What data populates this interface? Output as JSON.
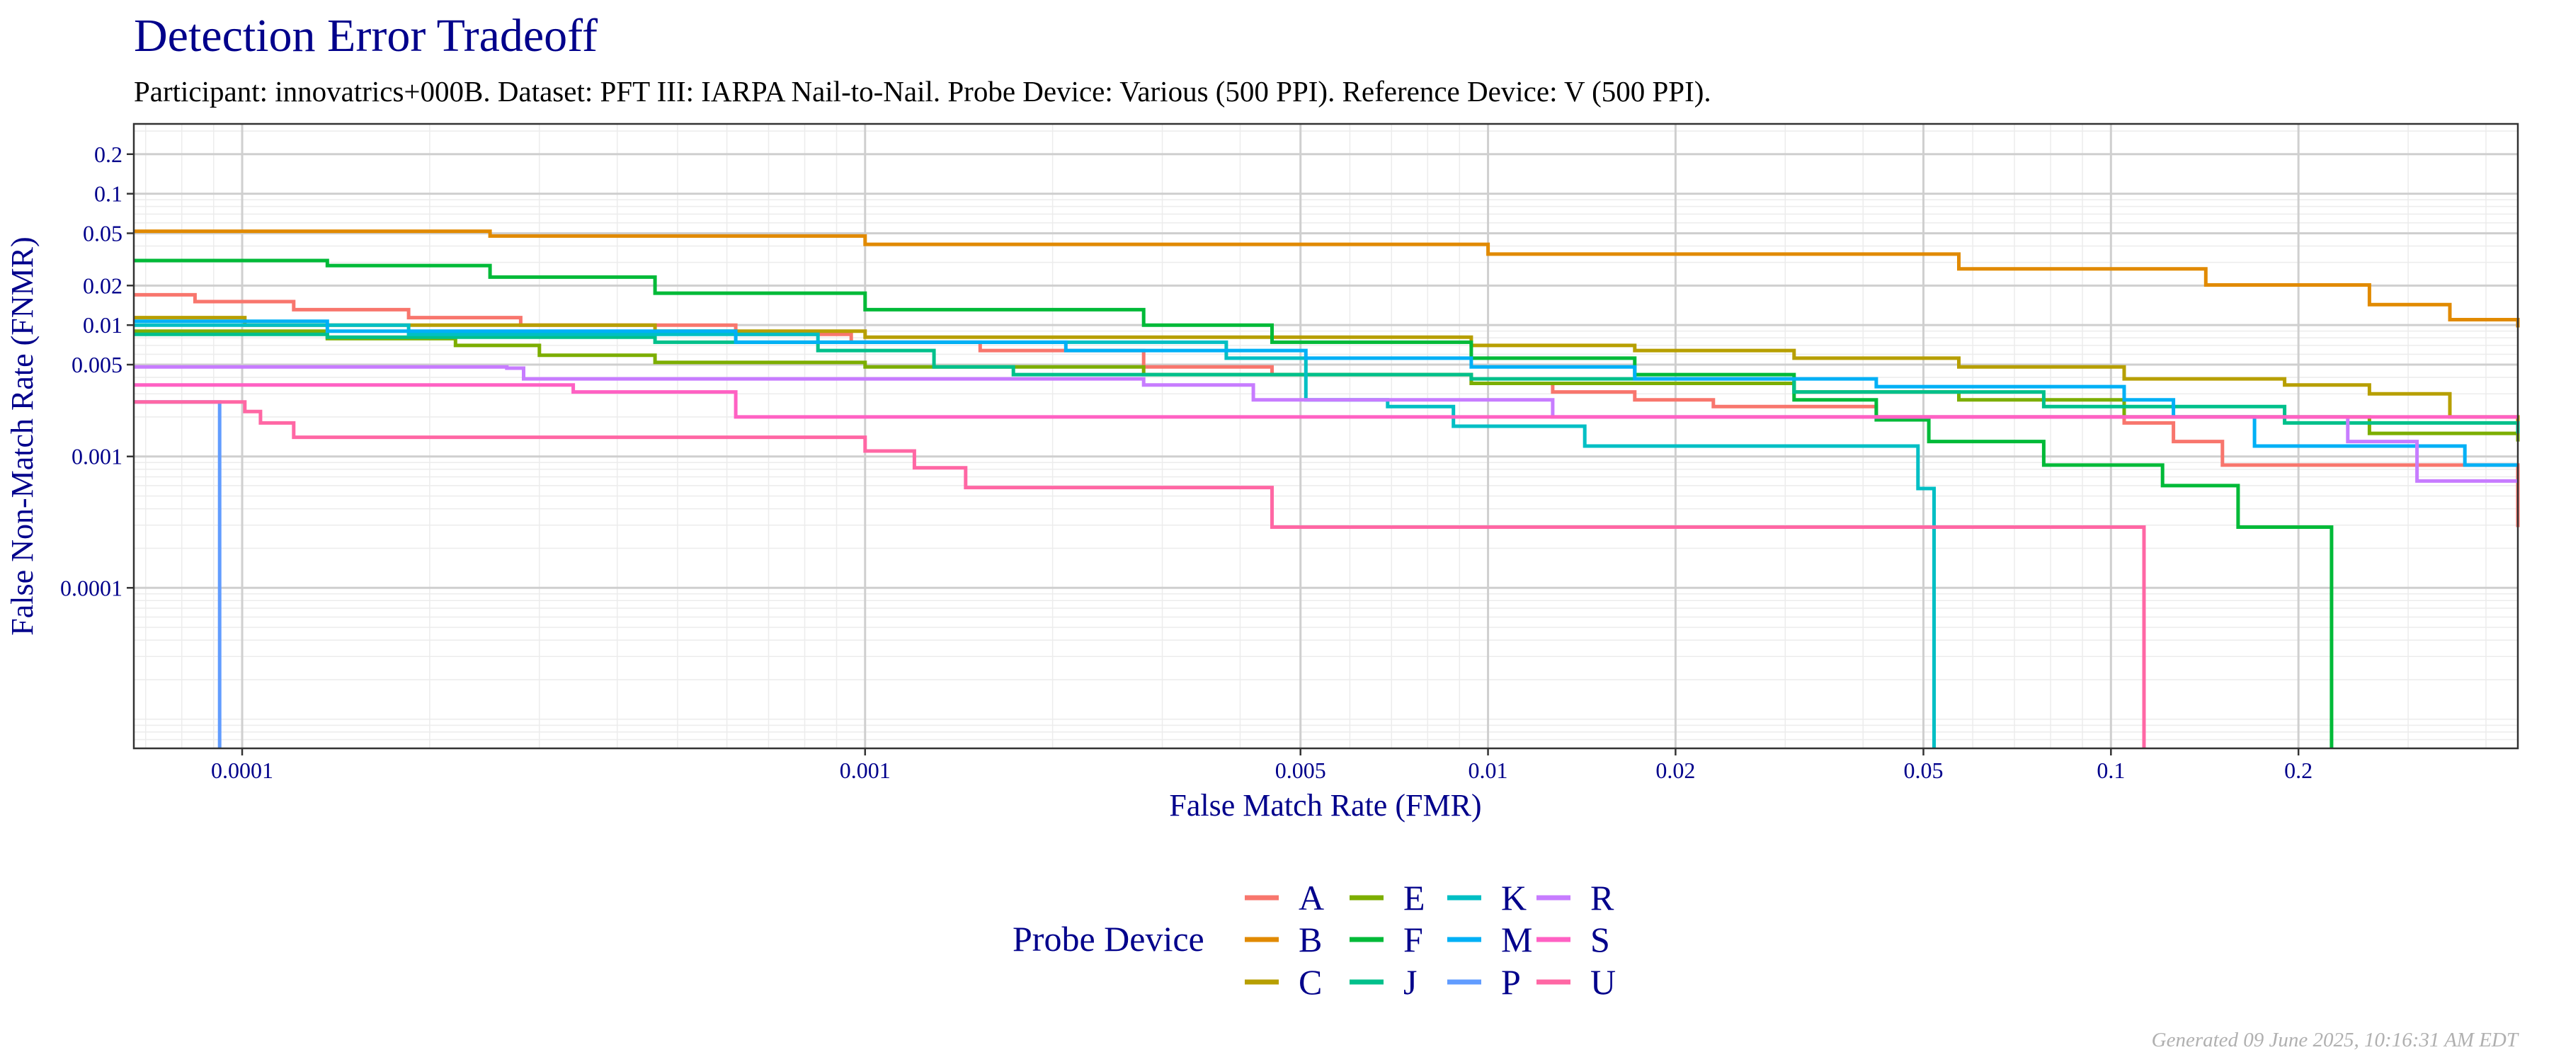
{
  "chart_data": {
    "type": "line",
    "title": "Detection Error Tradeoff",
    "subtitle": "Participant: innovatrics+000B. Dataset: PFT III: IARPA Nail-to-Nail. Probe Device: Various (500 PPI). Reference Device: V (500 PPI).",
    "xlabel": "False Match Rate (FMR)",
    "ylabel": "False Non-Match Rate (FNMR)",
    "xscale": "log",
    "yscale": "log",
    "xlim": [
      6.7e-05,
      0.45
    ],
    "ylim": [
      6e-06,
      0.34
    ],
    "x_ticks": [
      {
        "v": 0.0001,
        "label": "0.0001"
      },
      {
        "v": 0.001,
        "label": "0.001"
      },
      {
        "v": 0.005,
        "label": "0.005"
      },
      {
        "v": 0.01,
        "label": "0.01"
      },
      {
        "v": 0.02,
        "label": "0.02"
      },
      {
        "v": 0.05,
        "label": "0.05"
      },
      {
        "v": 0.1,
        "label": "0.1"
      },
      {
        "v": 0.2,
        "label": "0.2"
      }
    ],
    "y_ticks": [
      {
        "v": 0.2,
        "label": "0.2"
      },
      {
        "v": 0.1,
        "label": "0.1"
      },
      {
        "v": 0.05,
        "label": "0.05"
      },
      {
        "v": 0.02,
        "label": "0.02"
      },
      {
        "v": 0.01,
        "label": "0.01"
      },
      {
        "v": 0.005,
        "label": "0.005"
      },
      {
        "v": 0.001,
        "label": "0.001"
      },
      {
        "v": 0.0001,
        "label": "0.0001"
      }
    ],
    "grid": true,
    "legend": {
      "title": "Probe Device",
      "placement": "bottom"
    },
    "series": [
      {
        "name": "A",
        "color": "#F8766D",
        "points": [
          [
            6.7e-05,
            0.017
          ],
          [
            8.4e-05,
            0.0151
          ],
          [
            0.000121,
            0.0131
          ],
          [
            0.000185,
            0.0114
          ],
          [
            0.00028,
            0.01
          ],
          [
            0.00062,
            0.0085
          ],
          [
            0.00095,
            0.0074
          ],
          [
            0.00153,
            0.0064
          ],
          [
            0.0028,
            0.0048
          ],
          [
            0.0045,
            0.0042
          ],
          [
            0.0094,
            0.0036
          ],
          [
            0.0127,
            0.0031
          ],
          [
            0.0172,
            0.0027
          ],
          [
            0.023,
            0.0024
          ],
          [
            0.042,
            0.002
          ],
          [
            0.105,
            0.0018
          ],
          [
            0.126,
            0.0013
          ],
          [
            0.151,
            0.00086
          ],
          [
            0.45,
            0.00029
          ]
        ]
      },
      {
        "name": "B",
        "color": "#E18A00",
        "points": [
          [
            6.7e-05,
            0.0518
          ],
          [
            0.00025,
            0.0476
          ],
          [
            0.001,
            0.0412
          ],
          [
            0.01,
            0.0347
          ],
          [
            0.057,
            0.0268
          ],
          [
            0.142,
            0.0202
          ],
          [
            0.26,
            0.0143
          ],
          [
            0.35,
            0.011
          ],
          [
            0.45,
            0.0096
          ]
        ]
      },
      {
        "name": "C",
        "color": "#B79F00",
        "points": [
          [
            6.7e-05,
            0.0114
          ],
          [
            0.000101,
            0.01
          ],
          [
            0.00046,
            0.009
          ],
          [
            0.001,
            0.0081
          ],
          [
            0.0094,
            0.007
          ],
          [
            0.0172,
            0.0064
          ],
          [
            0.031,
            0.0056
          ],
          [
            0.057,
            0.0048
          ],
          [
            0.105,
            0.0039
          ],
          [
            0.19,
            0.0035
          ],
          [
            0.26,
            0.003
          ],
          [
            0.35,
            0.002
          ],
          [
            0.45,
            0.0017
          ]
        ]
      },
      {
        "name": "E",
        "color": "#7CAE00",
        "points": [
          [
            6.7e-05,
            0.009
          ],
          [
            0.000137,
            0.0079
          ],
          [
            0.00022,
            0.007
          ],
          [
            0.0003,
            0.0059
          ],
          [
            0.00046,
            0.0052
          ],
          [
            0.001,
            0.0048
          ],
          [
            0.0028,
            0.0042
          ],
          [
            0.0094,
            0.0036
          ],
          [
            0.031,
            0.0031
          ],
          [
            0.057,
            0.0027
          ],
          [
            0.105,
            0.002
          ],
          [
            0.26,
            0.0015
          ],
          [
            0.45,
            0.0013
          ]
        ]
      },
      {
        "name": "F",
        "color": "#00BA38",
        "points": [
          [
            6.7e-05,
            0.031
          ],
          [
            0.000137,
            0.0284
          ],
          [
            0.00025,
            0.0232
          ],
          [
            0.00046,
            0.0175
          ],
          [
            0.001,
            0.0131
          ],
          [
            0.0028,
            0.01
          ],
          [
            0.0045,
            0.0074
          ],
          [
            0.0094,
            0.0056
          ],
          [
            0.0172,
            0.0042
          ],
          [
            0.031,
            0.0027
          ],
          [
            0.042,
            0.0019
          ],
          [
            0.051,
            0.0013
          ],
          [
            0.078,
            0.00086
          ],
          [
            0.121,
            0.0006
          ],
          [
            0.16,
            0.00029
          ],
          [
            0.226,
            1e-06
          ]
        ]
      },
      {
        "name": "J",
        "color": "#00C08B",
        "points": [
          [
            6.7e-05,
            0.0085
          ],
          [
            0.000137,
            0.0081
          ],
          [
            0.00046,
            0.0074
          ],
          [
            0.00084,
            0.0064
          ],
          [
            0.00129,
            0.0048
          ],
          [
            0.00173,
            0.0042
          ],
          [
            0.0094,
            0.0039
          ],
          [
            0.031,
            0.0031
          ],
          [
            0.078,
            0.0024
          ],
          [
            0.19,
            0.0018
          ],
          [
            0.45,
            0.0015
          ]
        ]
      },
      {
        "name": "K",
        "color": "#00BFC4",
        "points": [
          [
            6.7e-05,
            0.01
          ],
          [
            0.000185,
            0.0085
          ],
          [
            0.00084,
            0.0074
          ],
          [
            0.0038,
            0.0056
          ],
          [
            0.0051,
            0.0027
          ],
          [
            0.0069,
            0.0024
          ],
          [
            0.0088,
            0.0017
          ],
          [
            0.0143,
            0.0012
          ],
          [
            0.049,
            0.00057
          ],
          [
            0.052,
            1e-06
          ]
        ]
      },
      {
        "name": "M",
        "color": "#00B0F6",
        "points": [
          [
            6.7e-05,
            0.0107
          ],
          [
            0.000137,
            0.009
          ],
          [
            0.00062,
            0.0074
          ],
          [
            0.0021,
            0.0064
          ],
          [
            0.0051,
            0.0056
          ],
          [
            0.0094,
            0.0048
          ],
          [
            0.0172,
            0.0039
          ],
          [
            0.042,
            0.0034
          ],
          [
            0.105,
            0.0027
          ],
          [
            0.126,
            0.002
          ],
          [
            0.17,
            0.0012
          ],
          [
            0.37,
            0.00086
          ],
          [
            0.45,
            0.00086
          ]
        ]
      },
      {
        "name": "P",
        "color": "#619CFF",
        "points": [
          [
            6.7e-05,
            0.0026
          ],
          [
            9.1e-05,
            0.0026
          ],
          [
            9.2e-05,
            1e-06
          ]
        ]
      },
      {
        "name": "R",
        "color": "#C77CFF",
        "points": [
          [
            6.7e-05,
            0.0048
          ],
          [
            0.000266,
            0.0047
          ],
          [
            0.000283,
            0.0039
          ],
          [
            0.0028,
            0.0035
          ],
          [
            0.0042,
            0.0027
          ],
          [
            0.0127,
            0.002
          ],
          [
            0.24,
            0.0013
          ],
          [
            0.31,
            0.00065
          ],
          [
            0.45,
            0.00065
          ]
        ]
      },
      {
        "name": "S",
        "color": "#FF61C3",
        "points": [
          [
            6.7e-05,
            0.0035
          ],
          [
            0.00034,
            0.0031
          ],
          [
            0.00062,
            0.002
          ],
          [
            0.45,
            0.002
          ]
        ]
      },
      {
        "name": "U",
        "color": "#FF67A4",
        "points": [
          [
            6.7e-05,
            0.0026
          ],
          [
            0.000101,
            0.0022
          ],
          [
            0.000107,
            0.0018
          ],
          [
            0.000121,
            0.0014
          ],
          [
            0.001,
            0.0011
          ],
          [
            0.0012,
            0.00082
          ],
          [
            0.00145,
            0.00058
          ],
          [
            0.0045,
            0.00029
          ],
          [
            0.113,
            1e-06
          ]
        ]
      }
    ]
  },
  "footer": "Generated 09 June 2025, 10:16:31 AM EDT"
}
